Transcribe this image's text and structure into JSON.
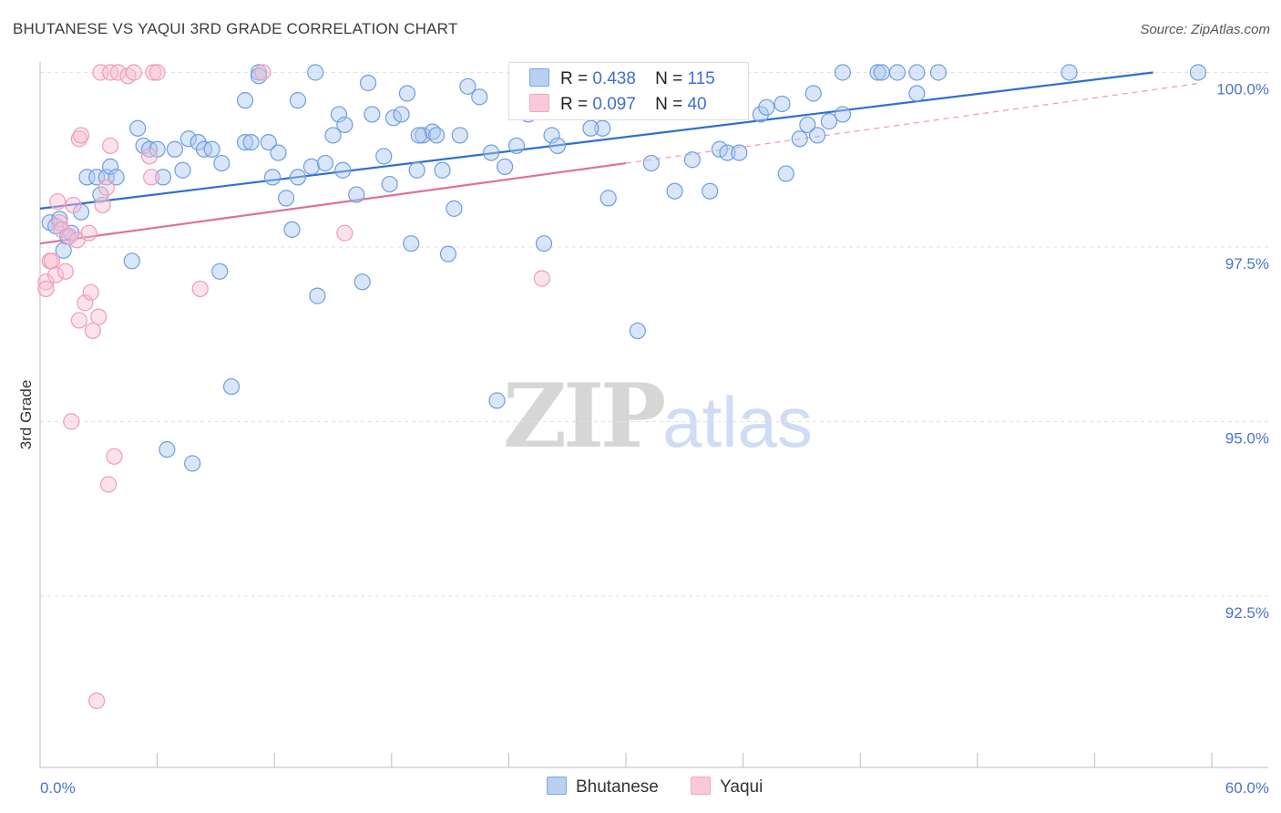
{
  "title": "BHUTANESE VS YAQUI 3RD GRADE CORRELATION CHART",
  "source": "Source: ZipAtlas.com",
  "watermark": {
    "zip": "ZIP",
    "atlas": "atlas"
  },
  "legend": {
    "r_label": "R =",
    "n_label": "N =",
    "series": [
      {
        "name": "Bhutanese",
        "r": "0.438",
        "n": "115"
      },
      {
        "name": "Yaqui",
        "r": "0.097",
        "n": "40"
      }
    ]
  },
  "chart_data": {
    "type": "scatter",
    "title": "BHUTANESE VS YAQUI 3RD GRADE CORRELATION CHART",
    "xlabel": "",
    "ylabel": "3rd Grade",
    "xlim": [
      0,
      60
    ],
    "ylim": [
      90.2,
      100.35
    ],
    "x_tick_labels": [
      "0.0%",
      "60.0%"
    ],
    "y_ticks": [
      92.5,
      95.0,
      97.5,
      100.0
    ],
    "y_tick_labels": [
      "92.5%",
      "95.0%",
      "97.5%",
      "100.0%"
    ],
    "grid": true,
    "colors": {
      "Bhutanese": "#7ba7e3",
      "Yaqui": "#f2a6c0",
      "blue_line": "#2f6fd0",
      "pink_line": "#e0709a"
    },
    "series": [
      {
        "name": "Bhutanese",
        "trend": {
          "x0": 0,
          "y0": 98.05,
          "x1": 57,
          "y1": 100.0
        },
        "points": [
          [
            0.5,
            97.85
          ],
          [
            0.8,
            97.8
          ],
          [
            1.0,
            97.9
          ],
          [
            1.2,
            97.45
          ],
          [
            1.4,
            97.65
          ],
          [
            1.6,
            97.7
          ],
          [
            2.1,
            98.0
          ],
          [
            2.4,
            98.5
          ],
          [
            2.9,
            98.5
          ],
          [
            3.1,
            98.25
          ],
          [
            3.4,
            98.5
          ],
          [
            3.6,
            98.65
          ],
          [
            3.9,
            98.5
          ],
          [
            4.7,
            97.3
          ],
          [
            5.0,
            99.2
          ],
          [
            5.3,
            98.95
          ],
          [
            5.6,
            98.9
          ],
          [
            6.0,
            98.9
          ],
          [
            6.3,
            98.5
          ],
          [
            6.9,
            98.9
          ],
          [
            7.3,
            98.6
          ],
          [
            7.6,
            99.05
          ],
          [
            8.1,
            99.0
          ],
          [
            8.4,
            98.9
          ],
          [
            8.8,
            98.9
          ],
          [
            9.3,
            98.7
          ],
          [
            9.2,
            97.15
          ],
          [
            10.5,
            99.0
          ],
          [
            10.8,
            99.0
          ],
          [
            10.5,
            99.6
          ],
          [
            11.2,
            100.0
          ],
          [
            11.7,
            99.0
          ],
          [
            11.9,
            98.5
          ],
          [
            12.2,
            98.85
          ],
          [
            12.6,
            98.2
          ],
          [
            12.9,
            97.75
          ],
          [
            13.2,
            99.6
          ],
          [
            13.2,
            98.5
          ],
          [
            13.9,
            98.65
          ],
          [
            14.1,
            100.0
          ],
          [
            14.2,
            96.8
          ],
          [
            14.6,
            98.7
          ],
          [
            15.0,
            99.1
          ],
          [
            15.3,
            99.4
          ],
          [
            15.5,
            98.6
          ],
          [
            15.6,
            99.25
          ],
          [
            16.2,
            98.25
          ],
          [
            16.5,
            97.0
          ],
          [
            16.8,
            99.85
          ],
          [
            17.0,
            99.4
          ],
          [
            17.6,
            98.8
          ],
          [
            17.9,
            98.4
          ],
          [
            18.1,
            99.35
          ],
          [
            18.5,
            99.4
          ],
          [
            18.8,
            99.7
          ],
          [
            19.0,
            97.55
          ],
          [
            19.3,
            98.6
          ],
          [
            19.6,
            99.1
          ],
          [
            20.1,
            99.15
          ],
          [
            20.3,
            99.1
          ],
          [
            20.6,
            98.6
          ],
          [
            20.9,
            97.4
          ],
          [
            21.2,
            98.05
          ],
          [
            21.5,
            99.1
          ],
          [
            21.9,
            99.8
          ],
          [
            22.5,
            99.65
          ],
          [
            23.1,
            98.85
          ],
          [
            23.4,
            95.3
          ],
          [
            23.8,
            98.65
          ],
          [
            24.4,
            98.95
          ],
          [
            25.0,
            99.4
          ],
          [
            25.8,
            97.55
          ],
          [
            26.2,
            99.1
          ],
          [
            26.5,
            98.95
          ],
          [
            26.9,
            99.7
          ],
          [
            28.3,
            100.0
          ],
          [
            28.8,
            99.2
          ],
          [
            29.1,
            98.2
          ],
          [
            30.0,
            99.5
          ],
          [
            30.6,
            96.3
          ],
          [
            31.3,
            98.7
          ],
          [
            32.1,
            99.5
          ],
          [
            32.5,
            98.3
          ],
          [
            33.3,
            100.0
          ],
          [
            33.4,
            98.75
          ],
          [
            34.3,
            98.3
          ],
          [
            34.8,
            98.9
          ],
          [
            35.2,
            98.85
          ],
          [
            35.8,
            98.85
          ],
          [
            36.9,
            99.4
          ],
          [
            37.2,
            99.5
          ],
          [
            38.0,
            99.55
          ],
          [
            38.2,
            98.55
          ],
          [
            38.9,
            99.05
          ],
          [
            39.3,
            99.25
          ],
          [
            39.6,
            99.7
          ],
          [
            39.8,
            99.1
          ],
          [
            40.4,
            99.3
          ],
          [
            41.1,
            99.4
          ],
          [
            41.1,
            100.0
          ],
          [
            42.9,
            100.0
          ],
          [
            43.1,
            100.0
          ],
          [
            43.9,
            100.0
          ],
          [
            44.9,
            100.0
          ],
          [
            44.9,
            99.7
          ],
          [
            46.0,
            100.0
          ],
          [
            52.7,
            100.0
          ],
          [
            59.3,
            100.0
          ],
          [
            6.5,
            94.6
          ],
          [
            7.8,
            94.4
          ],
          [
            9.8,
            95.5
          ],
          [
            11.2,
            99.95
          ],
          [
            26.5,
            99.6
          ],
          [
            28.2,
            99.2
          ],
          [
            19.4,
            99.1
          ]
        ]
      },
      {
        "name": "Yaqui",
        "trend": {
          "x0": 0,
          "y0": 97.55,
          "x1": 30,
          "y1": 98.7,
          "x_ext": 59.5,
          "y_ext": 99.85
        },
        "points": [
          [
            0.3,
            97.0
          ],
          [
            0.3,
            96.9
          ],
          [
            0.5,
            97.3
          ],
          [
            0.6,
            97.3
          ],
          [
            0.8,
            97.1
          ],
          [
            0.9,
            98.15
          ],
          [
            1.0,
            97.85
          ],
          [
            1.1,
            97.75
          ],
          [
            1.3,
            97.15
          ],
          [
            1.5,
            97.65
          ],
          [
            1.7,
            98.1
          ],
          [
            1.9,
            97.6
          ],
          [
            2.0,
            96.45
          ],
          [
            2.0,
            99.05
          ],
          [
            2.1,
            99.1
          ],
          [
            2.3,
            96.7
          ],
          [
            2.5,
            97.7
          ],
          [
            2.6,
            96.85
          ],
          [
            2.7,
            96.3
          ],
          [
            3.0,
            96.5
          ],
          [
            3.1,
            100.0
          ],
          [
            3.2,
            98.1
          ],
          [
            3.4,
            98.35
          ],
          [
            3.6,
            100.0
          ],
          [
            3.6,
            98.95
          ],
          [
            4.0,
            100.0
          ],
          [
            4.5,
            99.95
          ],
          [
            4.8,
            100.0
          ],
          [
            5.6,
            98.8
          ],
          [
            5.7,
            98.5
          ],
          [
            5.8,
            100.0
          ],
          [
            6.0,
            100.0
          ],
          [
            8.2,
            96.9
          ],
          [
            11.4,
            100.0
          ],
          [
            15.6,
            97.7
          ],
          [
            25.7,
            97.05
          ],
          [
            1.6,
            95.0
          ],
          [
            3.8,
            94.5
          ],
          [
            3.5,
            94.1
          ],
          [
            2.9,
            91.0
          ]
        ]
      }
    ]
  }
}
